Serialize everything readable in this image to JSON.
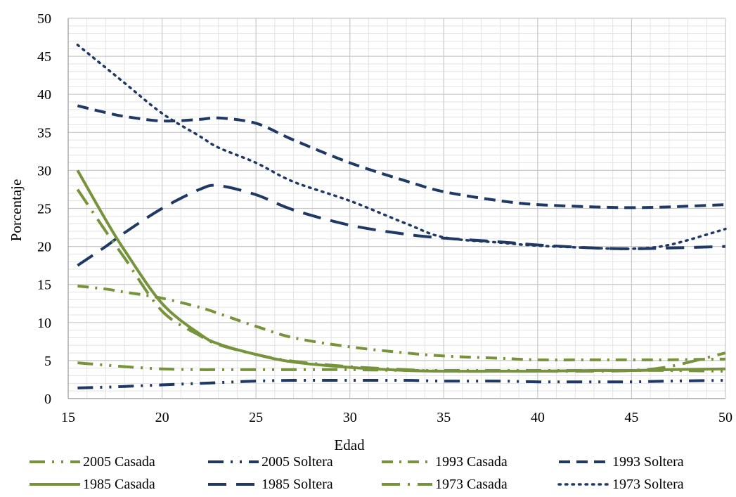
{
  "chart_data": {
    "type": "line",
    "title": "",
    "xlabel": "Edad",
    "ylabel": "Porcentaje",
    "xlim": [
      15,
      50
    ],
    "ylim": [
      0,
      50
    ],
    "x_ticks": [
      15,
      20,
      25,
      30,
      35,
      40,
      45,
      50
    ],
    "y_ticks": [
      0,
      5,
      10,
      15,
      20,
      25,
      30,
      35,
      40,
      45,
      50
    ],
    "grid": true,
    "legend_position": "bottom",
    "x": [
      15.5,
      17,
      18,
      20,
      22,
      23,
      25,
      27,
      30,
      33,
      35,
      38,
      40,
      43,
      45,
      47,
      50
    ],
    "series": [
      {
        "name": "2005 Casada",
        "color": "#77933C",
        "dash": "dashdotdot",
        "values": [
          4.7,
          4.4,
          4.2,
          3.9,
          3.8,
          3.8,
          3.8,
          3.8,
          3.8,
          3.7,
          3.7,
          3.7,
          3.7,
          3.7,
          3.7,
          3.7,
          3.6
        ]
      },
      {
        "name": "2005 Soltera",
        "color": "#1F3864",
        "dash": "dashdotdot",
        "values": [
          1.4,
          1.5,
          1.6,
          1.8,
          2.0,
          2.1,
          2.3,
          2.4,
          2.4,
          2.4,
          2.3,
          2.3,
          2.2,
          2.2,
          2.2,
          2.3,
          2.4
        ]
      },
      {
        "name": "1993 Casada",
        "color": "#77933C",
        "dash": "dashdot",
        "values": [
          14.8,
          14.4,
          14.0,
          13.2,
          12.0,
          11.2,
          9.5,
          8.0,
          6.8,
          6.0,
          5.6,
          5.3,
          5.1,
          5.1,
          5.1,
          5.1,
          5.2
        ]
      },
      {
        "name": "1993 Soltera",
        "color": "#1F3864",
        "dash": "dash",
        "values": [
          38.5,
          37.6,
          37.1,
          36.5,
          36.7,
          36.9,
          36.2,
          34.0,
          31.0,
          28.6,
          27.2,
          26.0,
          25.5,
          25.2,
          25.1,
          25.2,
          25.5
        ]
      },
      {
        "name": "1985 Casada",
        "color": "#77933C",
        "dash": "solid",
        "values": [
          30.0,
          23.5,
          19.5,
          12.5,
          8.5,
          7.2,
          5.8,
          4.8,
          4.1,
          3.7,
          3.6,
          3.6,
          3.6,
          3.7,
          3.7,
          3.8,
          3.9
        ]
      },
      {
        "name": "1985 Soltera",
        "color": "#1F3864",
        "dash": "longdash",
        "values": [
          17.5,
          20.0,
          21.8,
          25.0,
          27.5,
          28.0,
          26.8,
          24.8,
          22.8,
          21.6,
          21.1,
          20.6,
          20.2,
          19.8,
          19.7,
          19.8,
          20.0
        ]
      },
      {
        "name": "1973 Casada",
        "color": "#77933C",
        "dash": "longdashdot",
        "values": [
          27.5,
          22.0,
          18.5,
          11.5,
          8.3,
          7.1,
          5.8,
          4.9,
          4.2,
          3.8,
          3.6,
          3.6,
          3.6,
          3.6,
          3.7,
          4.2,
          6.0
        ]
      },
      {
        "name": "1973 Soltera",
        "color": "#1F3864",
        "dash": "dot",
        "values": [
          46.5,
          43.5,
          41.5,
          37.5,
          34.5,
          33.0,
          31.0,
          28.5,
          26.0,
          23.0,
          21.2,
          20.5,
          20.1,
          19.8,
          19.7,
          20.2,
          22.3
        ]
      }
    ]
  }
}
